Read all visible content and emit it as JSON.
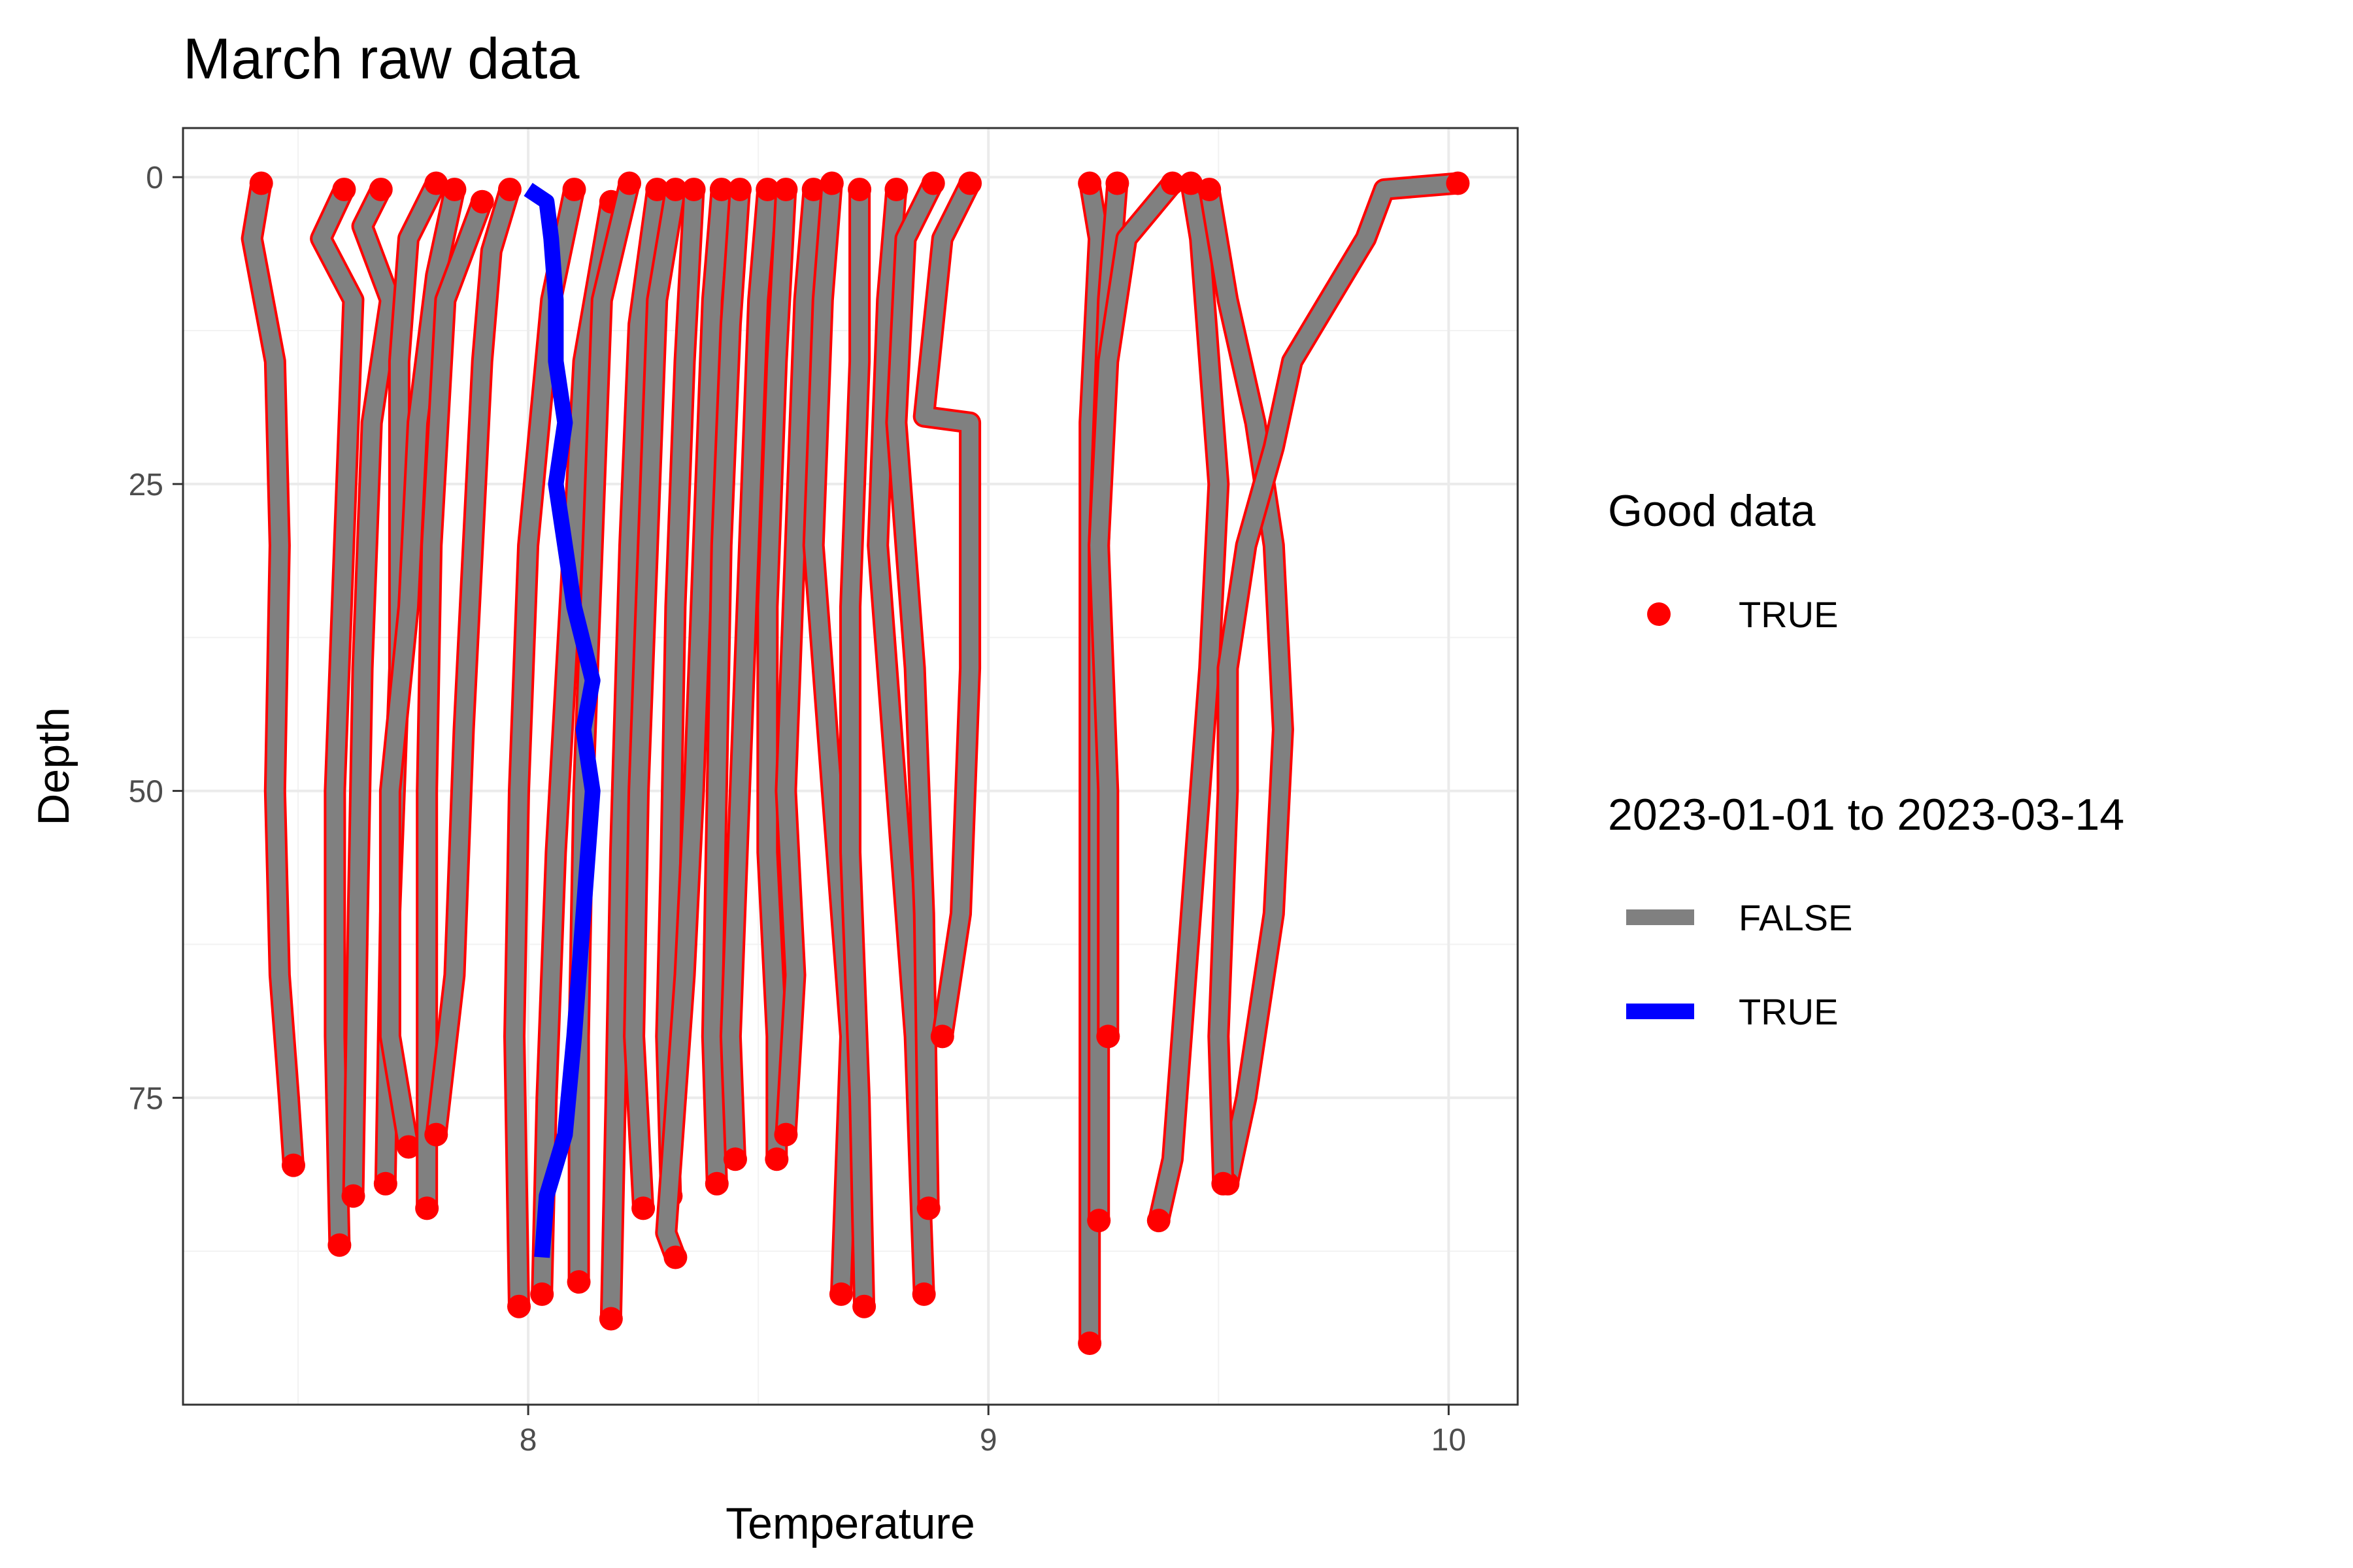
{
  "chart_data": {
    "type": "line",
    "title": "March raw data",
    "xlabel": "Temperature",
    "ylabel": "Depth",
    "xlim": [
      7.25,
      10.15
    ],
    "ylim": [
      100,
      -4
    ],
    "y_reversed": true,
    "x_ticks": [
      8,
      9,
      10
    ],
    "y_ticks": [
      0,
      25,
      50,
      75
    ],
    "grid": true,
    "legend_placement": "right",
    "legends": [
      {
        "title": "Good data",
        "entries": [
          {
            "label": "TRUE",
            "color": "#FF0000",
            "shape": "point"
          }
        ]
      },
      {
        "title": "2023-01-01 to 2023-03-14",
        "entries": [
          {
            "label": "FALSE",
            "color": "#808080",
            "shape": "line"
          },
          {
            "label": "TRUE",
            "color": "#0000FF",
            "shape": "line"
          }
        ]
      }
    ],
    "series": [
      {
        "highlight": false,
        "points": [
          [
            7.42,
            0.5
          ],
          [
            7.4,
            5
          ],
          [
            7.45,
            15
          ],
          [
            7.46,
            30
          ],
          [
            7.45,
            50
          ],
          [
            7.46,
            65
          ],
          [
            7.48,
            75
          ],
          [
            7.49,
            80.5
          ]
        ]
      },
      {
        "highlight": false,
        "points": [
          [
            7.6,
            1
          ],
          [
            7.55,
            5
          ],
          [
            7.62,
            10
          ],
          [
            7.6,
            30
          ],
          [
            7.58,
            50
          ],
          [
            7.58,
            70
          ],
          [
            7.59,
            87
          ]
        ]
      },
      {
        "highlight": false,
        "points": [
          [
            7.68,
            1
          ],
          [
            7.64,
            4
          ],
          [
            7.7,
            10
          ],
          [
            7.66,
            20
          ],
          [
            7.64,
            40
          ],
          [
            7.63,
            60
          ],
          [
            7.62,
            83
          ]
        ]
      },
      {
        "highlight": false,
        "points": [
          [
            7.8,
            0.5
          ],
          [
            7.74,
            5
          ],
          [
            7.72,
            15
          ],
          [
            7.72,
            40
          ],
          [
            7.7,
            60
          ],
          [
            7.69,
            82
          ]
        ]
      },
      {
        "highlight": false,
        "points": [
          [
            7.84,
            1
          ],
          [
            7.8,
            8
          ],
          [
            7.76,
            20
          ],
          [
            7.74,
            35
          ],
          [
            7.7,
            50
          ],
          [
            7.7,
            70
          ],
          [
            7.74,
            79
          ]
        ]
      },
      {
        "highlight": false,
        "points": [
          [
            7.9,
            2
          ],
          [
            7.82,
            10
          ],
          [
            7.79,
            30
          ],
          [
            7.78,
            50
          ],
          [
            7.78,
            70
          ],
          [
            7.78,
            84
          ]
        ]
      },
      {
        "highlight": false,
        "points": [
          [
            7.96,
            1
          ],
          [
            7.92,
            6
          ],
          [
            7.9,
            15
          ],
          [
            7.88,
            30
          ],
          [
            7.86,
            45
          ],
          [
            7.84,
            65
          ],
          [
            7.8,
            78
          ]
        ]
      },
      {
        "highlight": false,
        "points": [
          [
            8.1,
            1
          ],
          [
            8.05,
            10
          ],
          [
            8.0,
            30
          ],
          [
            7.98,
            50
          ],
          [
            7.97,
            70
          ],
          [
            7.98,
            92
          ]
        ]
      },
      {
        "highlight": false,
        "points": [
          [
            8.18,
            2
          ],
          [
            8.12,
            15
          ],
          [
            8.09,
            35
          ],
          [
            8.06,
            55
          ],
          [
            8.04,
            75
          ],
          [
            8.03,
            91
          ]
        ]
      },
      {
        "highlight": false,
        "points": [
          [
            8.22,
            0.5
          ],
          [
            8.16,
            10
          ],
          [
            8.14,
            30
          ],
          [
            8.12,
            50
          ],
          [
            8.11,
            70
          ],
          [
            8.11,
            90
          ]
        ]
      },
      {
        "highlight": false,
        "points": [
          [
            8.28,
            1
          ],
          [
            8.24,
            12
          ],
          [
            8.22,
            30
          ],
          [
            8.2,
            55
          ],
          [
            8.19,
            75
          ],
          [
            8.18,
            93
          ]
        ]
      },
      {
        "highlight": false,
        "points": [
          [
            8.32,
            1
          ],
          [
            8.28,
            10
          ],
          [
            8.26,
            30
          ],
          [
            8.24,
            50
          ],
          [
            8.23,
            70
          ],
          [
            8.25,
            84
          ]
        ]
      },
      {
        "highlight": false,
        "points": [
          [
            8.36,
            1
          ],
          [
            8.34,
            15
          ],
          [
            8.32,
            35
          ],
          [
            8.31,
            55
          ],
          [
            8.3,
            70
          ],
          [
            8.31,
            83
          ]
        ]
      },
      {
        "highlight": false,
        "points": [
          [
            8.42,
            1
          ],
          [
            8.4,
            10
          ],
          [
            8.38,
            30
          ],
          [
            8.36,
            50
          ],
          [
            8.34,
            65
          ],
          [
            8.3,
            86
          ],
          [
            8.32,
            88
          ]
        ]
      },
      {
        "highlight": false,
        "points": [
          [
            8.46,
            1
          ],
          [
            8.44,
            12
          ],
          [
            8.42,
            30
          ],
          [
            8.41,
            50
          ],
          [
            8.4,
            70
          ],
          [
            8.41,
            82
          ]
        ]
      },
      {
        "highlight": false,
        "points": [
          [
            8.52,
            1
          ],
          [
            8.5,
            10
          ],
          [
            8.48,
            30
          ],
          [
            8.46,
            50
          ],
          [
            8.44,
            70
          ],
          [
            8.45,
            80
          ]
        ]
      },
      {
        "highlight": false,
        "points": [
          [
            8.56,
            1
          ],
          [
            8.54,
            15
          ],
          [
            8.52,
            35
          ],
          [
            8.52,
            55
          ],
          [
            8.54,
            70
          ],
          [
            8.54,
            80
          ]
        ]
      },
      {
        "highlight": false,
        "points": [
          [
            8.62,
            1
          ],
          [
            8.6,
            10
          ],
          [
            8.58,
            30
          ],
          [
            8.56,
            50
          ],
          [
            8.58,
            65
          ],
          [
            8.56,
            78
          ]
        ]
      },
      {
        "highlight": false,
        "points": [
          [
            8.66,
            0.5
          ],
          [
            8.64,
            10
          ],
          [
            8.62,
            30
          ],
          [
            8.66,
            50
          ],
          [
            8.7,
            70
          ],
          [
            8.68,
            91
          ]
        ]
      },
      {
        "highlight": false,
        "points": [
          [
            8.72,
            1
          ],
          [
            8.72,
            15
          ],
          [
            8.7,
            35
          ],
          [
            8.7,
            55
          ],
          [
            8.72,
            75
          ],
          [
            8.73,
            92
          ]
        ]
      },
      {
        "highlight": false,
        "points": [
          [
            8.8,
            1
          ],
          [
            8.78,
            10
          ],
          [
            8.76,
            30
          ],
          [
            8.8,
            50
          ],
          [
            8.84,
            70
          ],
          [
            8.86,
            91
          ]
        ]
      },
      {
        "highlight": false,
        "points": [
          [
            8.88,
            0.5
          ],
          [
            8.82,
            5
          ],
          [
            8.8,
            20
          ],
          [
            8.84,
            40
          ],
          [
            8.86,
            60
          ],
          [
            8.87,
            84
          ]
        ]
      },
      {
        "highlight": false,
        "points": [
          [
            8.96,
            0.5
          ],
          [
            8.9,
            5
          ],
          [
            8.86,
            19.5
          ],
          [
            8.96,
            20
          ],
          [
            8.96,
            40
          ],
          [
            8.94,
            60
          ],
          [
            8.9,
            70
          ]
        ]
      },
      {
        "highlight": false,
        "points": [
          [
            9.22,
            0.5
          ],
          [
            9.24,
            5
          ],
          [
            9.22,
            20
          ],
          [
            9.22,
            40
          ],
          [
            9.22,
            60
          ],
          [
            9.22,
            80
          ],
          [
            9.22,
            95
          ]
        ]
      },
      {
        "highlight": false,
        "points": [
          [
            9.28,
            0.5
          ],
          [
            9.26,
            10
          ],
          [
            9.24,
            30
          ],
          [
            9.24,
            50
          ],
          [
            9.24,
            70
          ],
          [
            9.24,
            85
          ]
        ]
      },
      {
        "highlight": false,
        "points": [
          [
            9.4,
            0.5
          ],
          [
            9.3,
            5
          ],
          [
            9.26,
            15
          ],
          [
            9.24,
            30
          ],
          [
            9.26,
            50
          ],
          [
            9.26,
            70
          ]
        ]
      },
      {
        "highlight": false,
        "points": [
          [
            9.44,
            0.5
          ],
          [
            9.46,
            5
          ],
          [
            9.5,
            25
          ],
          [
            9.48,
            40
          ],
          [
            9.44,
            60
          ],
          [
            9.4,
            80
          ],
          [
            9.37,
            85
          ]
        ]
      },
      {
        "highlight": false,
        "points": [
          [
            9.48,
            1
          ],
          [
            9.52,
            10
          ],
          [
            9.58,
            20
          ],
          [
            9.62,
            30
          ],
          [
            9.64,
            45
          ],
          [
            9.62,
            60
          ],
          [
            9.56,
            75
          ],
          [
            9.52,
            82
          ]
        ]
      },
      {
        "highlight": false,
        "points": [
          [
            10.02,
            0.5
          ],
          [
            9.86,
            1
          ],
          [
            9.82,
            5
          ],
          [
            9.74,
            10
          ],
          [
            9.66,
            15
          ],
          [
            9.62,
            22
          ],
          [
            9.56,
            30
          ],
          [
            9.52,
            40
          ],
          [
            9.52,
            50
          ],
          [
            9.5,
            70
          ],
          [
            9.51,
            82
          ]
        ]
      },
      {
        "highlight": true,
        "points": [
          [
            8.0,
            1
          ],
          [
            8.04,
            2
          ],
          [
            8.05,
            5
          ],
          [
            8.06,
            10
          ],
          [
            8.06,
            15
          ],
          [
            8.08,
            20
          ],
          [
            8.06,
            25
          ],
          [
            8.08,
            30
          ],
          [
            8.1,
            35
          ],
          [
            8.14,
            41
          ],
          [
            8.12,
            45
          ],
          [
            8.14,
            50
          ],
          [
            8.12,
            60
          ],
          [
            8.1,
            70
          ],
          [
            8.08,
            78
          ],
          [
            8.04,
            83
          ],
          [
            8.03,
            88
          ]
        ]
      }
    ]
  }
}
